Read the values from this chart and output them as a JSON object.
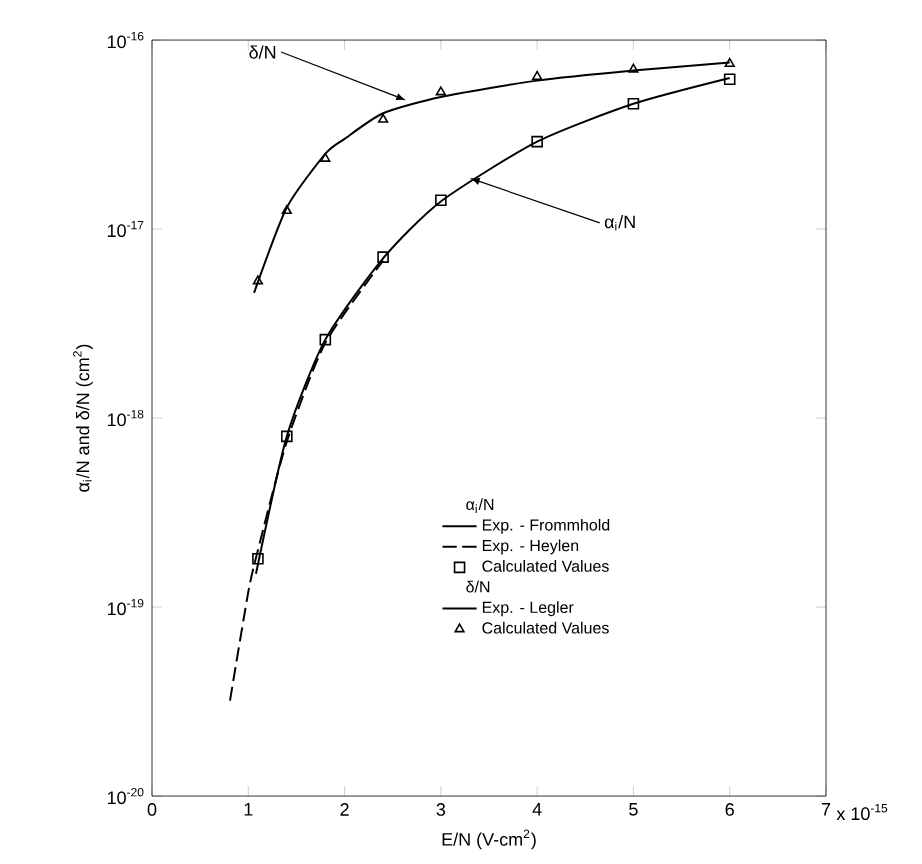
{
  "chart_data": {
    "type": "line",
    "xlabel": "E/N (V-cm$^{2}$)",
    "ylabel": "α$_{i}$/N and δ/N (cm$^{2}$)",
    "log": "y",
    "legend": "right",
    "xlim": [
      0,
      7
    ],
    "xticks": [
      0,
      1,
      2,
      3,
      4,
      5,
      6,
      7
    ],
    "ylim": [
      1e-20,
      1e-16
    ],
    "yticks": [
      {
        "value": 1e-20,
        "label": "10$^{-20}$"
      },
      {
        "value": 1e-19,
        "label": "10$^{-19}$"
      },
      {
        "value": 1e-18,
        "label": "10$^{-18}$"
      },
      {
        "value": 1e-17,
        "label": "10$^{-17}$"
      },
      {
        "value": 1e-16,
        "label": "10$^{-16}$"
      }
    ],
    "series": [
      {
        "name": "Exp. - Frommhold",
        "color": "#000000",
        "line_style": "solid",
        "marker": "none",
        "x": [
          1.08,
          1.4,
          1.8,
          2.4,
          3,
          4,
          5,
          6
        ],
        "values": [
          1.5e-19,
          8e-19,
          2.6e-18,
          7e-18,
          1.4e-17,
          2.9e-17,
          4.6e-17,
          6.3e-17
        ]
      },
      {
        "name": "Exp. - Heylen",
        "color": "#000000",
        "line_style": "dashed",
        "marker": "none",
        "x": [
          0.81,
          1.0,
          1.1,
          1.4,
          1.8,
          2.4
        ],
        "values": [
          3.2e-20,
          1.2e-19,
          2e-19,
          7.5e-19,
          2.5e-18,
          6.8e-18
        ]
      },
      {
        "name": "Calculated Values",
        "type": "scatter",
        "color": "#000000",
        "marker": "square",
        "x": [
          1.1,
          1.4,
          1.8,
          2.4,
          3,
          4,
          5,
          6
        ],
        "values": [
          1.8e-19,
          8e-19,
          2.6e-18,
          7.1e-18,
          1.42e-17,
          2.9e-17,
          4.6e-17,
          6.2e-17
        ]
      },
      {
        "name": "Exp. - Legler",
        "color": "#000000",
        "line_style": "solid",
        "marker": "none",
        "x": [
          1.06,
          1.4,
          1.8,
          2.0,
          2.4,
          3,
          4,
          5,
          6
        ],
        "values": [
          4.6e-18,
          1.3e-17,
          2.5e-17,
          3e-17,
          4.1e-17,
          5e-17,
          6.1e-17,
          6.9e-17,
          7.6e-17
        ]
      },
      {
        "name": "Calculated Values",
        "type": "scatter",
        "color": "#000000",
        "marker": "triangle",
        "x": [
          1.1,
          1.4,
          1.8,
          2.4,
          3,
          4,
          5,
          6
        ],
        "values": [
          5.3e-18,
          1.25e-17,
          2.36e-17,
          3.8e-17,
          5.3e-17,
          6.4e-17,
          7e-17,
          7.5e-17
        ]
      }
    ],
    "annotations": [
      {
        "text": "δ/N",
        "x": 2.64,
        "y": 4.8e-17
      },
      {
        "text": "α$_{i}$/N",
        "x": 3.3,
        "y": 1.86e-17
      },
      "α$_{i}$/N",
      "δ/N",
      "x 10$^{-15}$"
    ]
  }
}
